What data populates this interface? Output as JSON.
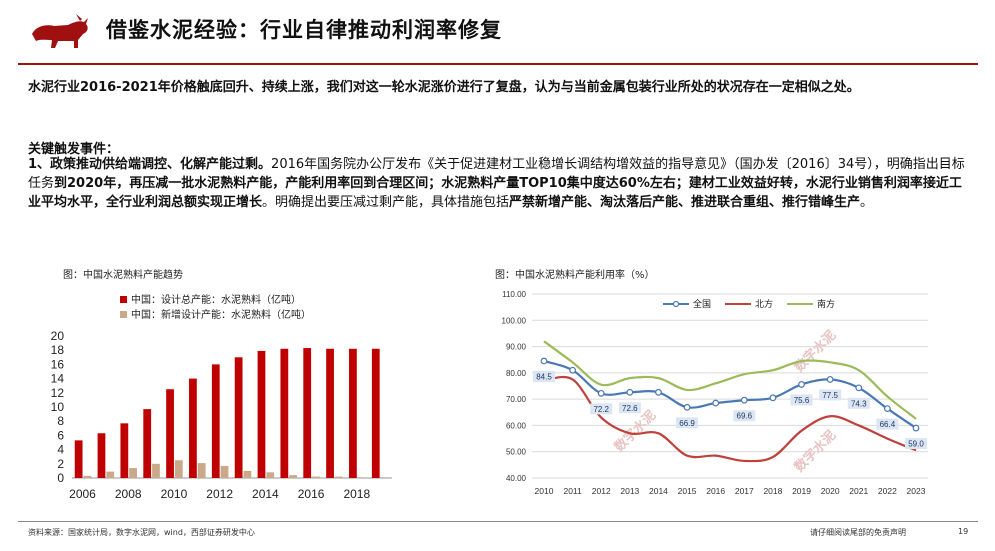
{
  "header": {
    "title": "借鉴水泥经验：行业自律推动利润率修复",
    "accent_color": "#a01010"
  },
  "intro": "水泥行业2016-2021年价格触底回升、持续上涨，我们对这一轮水泥涨价进行了复盘，认为与当前金属包装行业所处的状况存在一定相似之处。",
  "key_events": {
    "label": "关键触发事件：",
    "p1": "1、政策推动供给端调控、化解产能过剩。",
    "p2": "2016年国务院办公厅发布《关于促进建材工业稳增长调结构增效益的指导意见》（国办发〔2016〕34号），明确指出目标任务",
    "p3": "到2020年，再压减一批水泥熟料产能，产能利用率回到合理区间；水泥熟料产量TOP10集中度达60%左右；建材工业效益好转，水泥行业销售利润率接近工业平均水平，全行业利润总额实现正增长",
    "p4": "。明确提出要压减过剩产能，具体措施包括",
    "p5": "严禁新增产能、淘汰落后产能、推进联合重组、推行错峰生产",
    "p6": "。"
  },
  "chart_left": {
    "caption": "图：中国水泥熟料产能趋势",
    "chart_data": {
      "type": "bar",
      "categories": [
        "2006",
        "2007",
        "2008",
        "2009",
        "2010",
        "2011",
        "2012",
        "2013",
        "2014",
        "2015",
        "2016",
        "2017",
        "2018",
        "2019"
      ],
      "x_tick_labels": [
        "2006",
        "2008",
        "2010",
        "2012",
        "2014",
        "2016",
        "2018"
      ],
      "series": [
        {
          "name": "中国：设计总产能：水泥熟料（亿吨）",
          "color": "#c00000",
          "values": [
            5.3,
            6.3,
            7.7,
            9.7,
            12.5,
            14.0,
            16.0,
            17.0,
            17.9,
            18.2,
            18.3,
            18.2,
            18.2,
            18.2
          ]
        },
        {
          "name": "中国：新增设计产能：水泥熟料（亿吨）",
          "color": "#c9a98a",
          "values": [
            0.3,
            0.9,
            1.4,
            2.0,
            2.5,
            2.1,
            1.7,
            1.0,
            0.8,
            0.4,
            0.2,
            0.2,
            0.1,
            0.1
          ]
        }
      ],
      "ylim": [
        0,
        20
      ],
      "y_ticks": [
        0,
        2,
        4,
        6,
        8,
        10,
        12,
        14,
        16,
        18,
        20
      ],
      "legend": "top-left"
    }
  },
  "chart_right": {
    "caption": "图：中国水泥熟料产能利用率（%）",
    "watermark": "数字水泥",
    "chart_data": {
      "type": "line",
      "x": [
        "2010",
        "2011",
        "2012",
        "2013",
        "2014",
        "2015",
        "2016",
        "2017",
        "2018",
        "2019",
        "2020",
        "2021",
        "2022",
        "2023"
      ],
      "series": [
        {
          "name": "全国",
          "color": "#4a78b5",
          "values": [
            84.5,
            81.0,
            72.2,
            72.6,
            72.6,
            66.9,
            68.5,
            69.6,
            70.5,
            75.6,
            77.5,
            74.3,
            66.4,
            59.0
          ]
        },
        {
          "name": "北方",
          "color": "#c0403c",
          "values": [
            77.0,
            77.5,
            63.0,
            57.0,
            57.0,
            48.5,
            48.5,
            46.5,
            48.0,
            58.0,
            63.5,
            60.0,
            55.0,
            50.5
          ]
        },
        {
          "name": "南方",
          "color": "#9bbb59",
          "values": [
            92.0,
            84.0,
            75.5,
            78.0,
            78.0,
            73.5,
            76.0,
            79.5,
            81.0,
            84.5,
            84.0,
            81.0,
            71.0,
            62.5
          ]
        }
      ],
      "data_labels": [
        {
          "series": "全国",
          "index": 0,
          "text": "84.5"
        },
        {
          "series": "全国",
          "index": 2,
          "text": "72.2"
        },
        {
          "series": "全国",
          "index": 3,
          "text": "72.6"
        },
        {
          "series": "全国",
          "index": 5,
          "text": "66.9"
        },
        {
          "series": "全国",
          "index": 7,
          "text": "69.6"
        },
        {
          "series": "全国",
          "index": 9,
          "text": "75.6"
        },
        {
          "series": "全国",
          "index": 10,
          "text": "77.5"
        },
        {
          "series": "全国",
          "index": 11,
          "text": "74.3"
        },
        {
          "series": "全国",
          "index": 12,
          "text": "66.4"
        },
        {
          "series": "全国",
          "index": 13,
          "text": "59.0"
        }
      ],
      "ylim": [
        40,
        110
      ],
      "y_ticks": [
        "40.00",
        "50.00",
        "60.00",
        "70.00",
        "80.00",
        "90.00",
        "100.00",
        "110.00"
      ],
      "legend": "top-center"
    }
  },
  "footer": {
    "source": "资料来源：国家统计局，数字水泥网，wind，西部证券研发中心",
    "disclaimer": "请仔细阅读尾部的免责声明",
    "page": "19"
  }
}
